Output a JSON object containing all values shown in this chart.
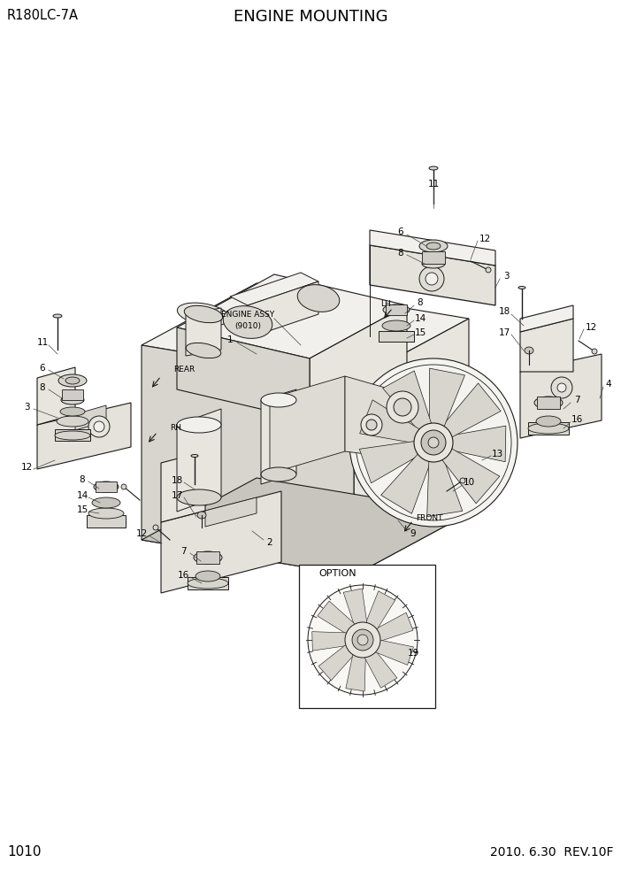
{
  "title_left": "R180LC-7A",
  "title_center": "ENGINE MOUNTING",
  "page_number": "1010",
  "date_rev": "2010. 6.30  REV.10F",
  "bg_color": "#ffffff",
  "lc": "#1a1a1a",
  "tc": "#000000",
  "fc_light": "#f2f0ec",
  "fc_mid": "#e8e5df",
  "fc_dark": "#d8d5ce",
  "fc_darker": "#c8c5be",
  "mount_color": "#d0cdc8",
  "bracket_color": "#e5e2db"
}
